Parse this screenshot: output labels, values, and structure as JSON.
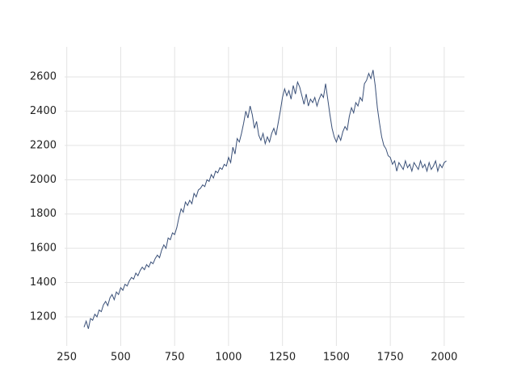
{
  "chart_data": {
    "type": "line",
    "x": [
      330,
      340,
      350,
      360,
      370,
      380,
      390,
      400,
      410,
      420,
      430,
      440,
      450,
      460,
      470,
      480,
      490,
      500,
      510,
      520,
      530,
      540,
      550,
      560,
      570,
      580,
      590,
      600,
      610,
      620,
      630,
      640,
      650,
      660,
      670,
      680,
      690,
      700,
      710,
      720,
      730,
      740,
      750,
      760,
      770,
      780,
      790,
      800,
      810,
      820,
      830,
      840,
      850,
      860,
      870,
      880,
      890,
      900,
      910,
      920,
      930,
      940,
      950,
      960,
      970,
      980,
      990,
      1000,
      1010,
      1020,
      1030,
      1040,
      1050,
      1060,
      1070,
      1080,
      1090,
      1100,
      1110,
      1120,
      1130,
      1140,
      1150,
      1160,
      1170,
      1180,
      1190,
      1200,
      1210,
      1220,
      1230,
      1240,
      1250,
      1260,
      1270,
      1280,
      1290,
      1300,
      1310,
      1320,
      1330,
      1340,
      1350,
      1360,
      1370,
      1380,
      1390,
      1400,
      1410,
      1420,
      1430,
      1440,
      1450,
      1460,
      1470,
      1480,
      1490,
      1500,
      1510,
      1520,
      1530,
      1540,
      1550,
      1560,
      1570,
      1580,
      1590,
      1600,
      1610,
      1620,
      1630,
      1640,
      1650,
      1660,
      1670,
      1680,
      1690,
      1700,
      1710,
      1720,
      1730,
      1740,
      1750,
      1760,
      1770,
      1780,
      1790,
      1800,
      1810,
      1820,
      1830,
      1840,
      1850,
      1860,
      1870,
      1880,
      1890,
      1900,
      1910,
      1920,
      1930,
      1940,
      1950,
      1960,
      1970,
      1980,
      1990,
      2000,
      2010
    ],
    "series": [
      {
        "color": "#3a5078",
        "values": [
          1140,
          1175,
          1130,
          1190,
          1180,
          1215,
          1200,
          1240,
          1230,
          1270,
          1290,
          1265,
          1310,
          1330,
          1300,
          1345,
          1330,
          1370,
          1355,
          1390,
          1380,
          1410,
          1430,
          1420,
          1455,
          1440,
          1470,
          1490,
          1475,
          1505,
          1490,
          1520,
          1510,
          1540,
          1560,
          1545,
          1590,
          1620,
          1600,
          1660,
          1650,
          1690,
          1680,
          1720,
          1780,
          1830,
          1810,
          1870,
          1850,
          1880,
          1860,
          1920,
          1900,
          1940,
          1950,
          1970,
          1960,
          2000,
          1990,
          2030,
          2010,
          2050,
          2040,
          2070,
          2060,
          2090,
          2080,
          2130,
          2100,
          2190,
          2150,
          2240,
          2220,
          2270,
          2330,
          2400,
          2360,
          2430,
          2380,
          2300,
          2340,
          2260,
          2230,
          2270,
          2210,
          2250,
          2220,
          2270,
          2300,
          2260,
          2330,
          2400,
          2480,
          2530,
          2490,
          2520,
          2470,
          2550,
          2500,
          2570,
          2540,
          2490,
          2440,
          2500,
          2430,
          2470,
          2450,
          2480,
          2430,
          2470,
          2500,
          2480,
          2560,
          2470,
          2380,
          2300,
          2250,
          2220,
          2260,
          2230,
          2280,
          2310,
          2290,
          2370,
          2420,
          2390,
          2450,
          2430,
          2480,
          2460,
          2560,
          2580,
          2620,
          2590,
          2640,
          2550,
          2420,
          2330,
          2250,
          2200,
          2180,
          2140,
          2130,
          2090,
          2110,
          2050,
          2100,
          2080,
          2060,
          2110,
          2070,
          2090,
          2050,
          2100,
          2080,
          2060,
          2110,
          2070,
          2090,
          2050,
          2100,
          2060,
          2080,
          2110,
          2050,
          2090,
          2070,
          2100,
          2110
        ]
      }
    ],
    "xlim": [
      240,
      2094
    ],
    "xticks": [
      250,
      500,
      750,
      1000,
      1250,
      1500,
      1750,
      2000
    ],
    "ylim": [
      1030,
      2775
    ],
    "yticks": [
      1200,
      1400,
      1600,
      1800,
      2000,
      2200,
      2400,
      2600
    ],
    "grid": true
  }
}
